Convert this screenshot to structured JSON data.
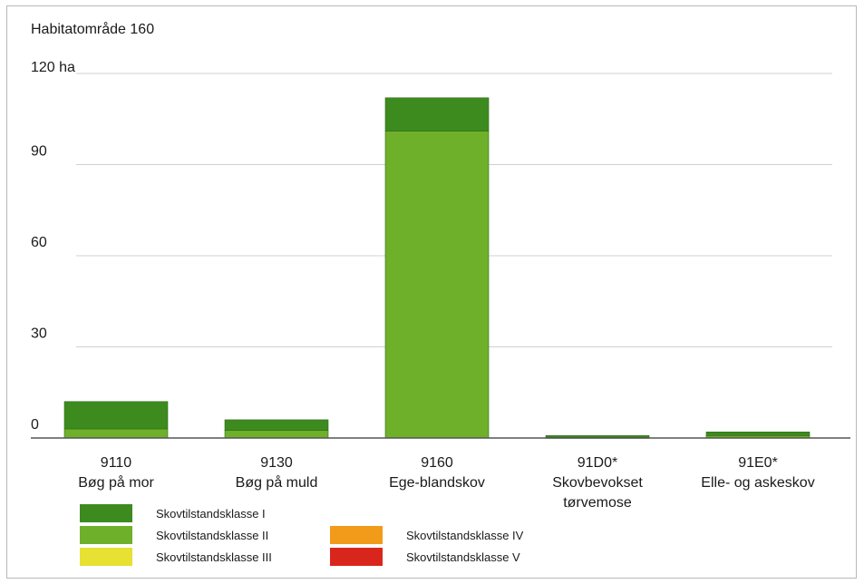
{
  "chart_data": {
    "type": "bar",
    "stacked": true,
    "title": "Habitatområde 160",
    "y_unit_label": "120 ha",
    "ylim": [
      0,
      120
    ],
    "yticks": [
      0,
      30,
      60,
      90
    ],
    "grid": true,
    "legend_position": "bottom-left",
    "categories": [
      {
        "code": "9110",
        "name": "Bøg på mor"
      },
      {
        "code": "9130",
        "name": "Bøg på muld"
      },
      {
        "code": "9160",
        "name": "Ege-blandskov"
      },
      {
        "code": "91D0*",
        "name": "Skovbevokset tørvemose"
      },
      {
        "code": "91E0*",
        "name": "Elle- og askeskov"
      }
    ],
    "series": [
      {
        "name": "Skovtilstandsklasse II",
        "color": "#6fb02a",
        "values": [
          3,
          2.5,
          101,
          0.2,
          0.8
        ]
      },
      {
        "name": "Skovtilstandsklasse I",
        "color": "#3d8b1f",
        "values": [
          9,
          3.5,
          11,
          0.6,
          1.2
        ]
      },
      {
        "name": "Skovtilstandsklasse III",
        "color": "#e6e133",
        "values": [
          0,
          0,
          0,
          0,
          0
        ]
      },
      {
        "name": "Skovtilstandsklasse IV",
        "color": "#f29a1a",
        "values": [
          0,
          0,
          0,
          0,
          0
        ]
      },
      {
        "name": "Skovtilstandsklasse V",
        "color": "#d9261c",
        "values": [
          0,
          0,
          0,
          0,
          0
        ]
      }
    ],
    "legend": [
      {
        "name": "Skovtilstandsklasse I",
        "color": "#3d8b1f"
      },
      {
        "name": "Skovtilstandsklasse II",
        "color": "#6fb02a"
      },
      {
        "name": "Skovtilstandsklasse III",
        "color": "#e6e133"
      },
      {
        "name": "Skovtilstandsklasse IV",
        "color": "#f29a1a"
      },
      {
        "name": "Skovtilstandsklasse V",
        "color": "#d9261c"
      }
    ],
    "colors": {
      "gridline": "#d0d0d0",
      "axis": "#555555",
      "bar_edge": "#2f6b18"
    }
  }
}
